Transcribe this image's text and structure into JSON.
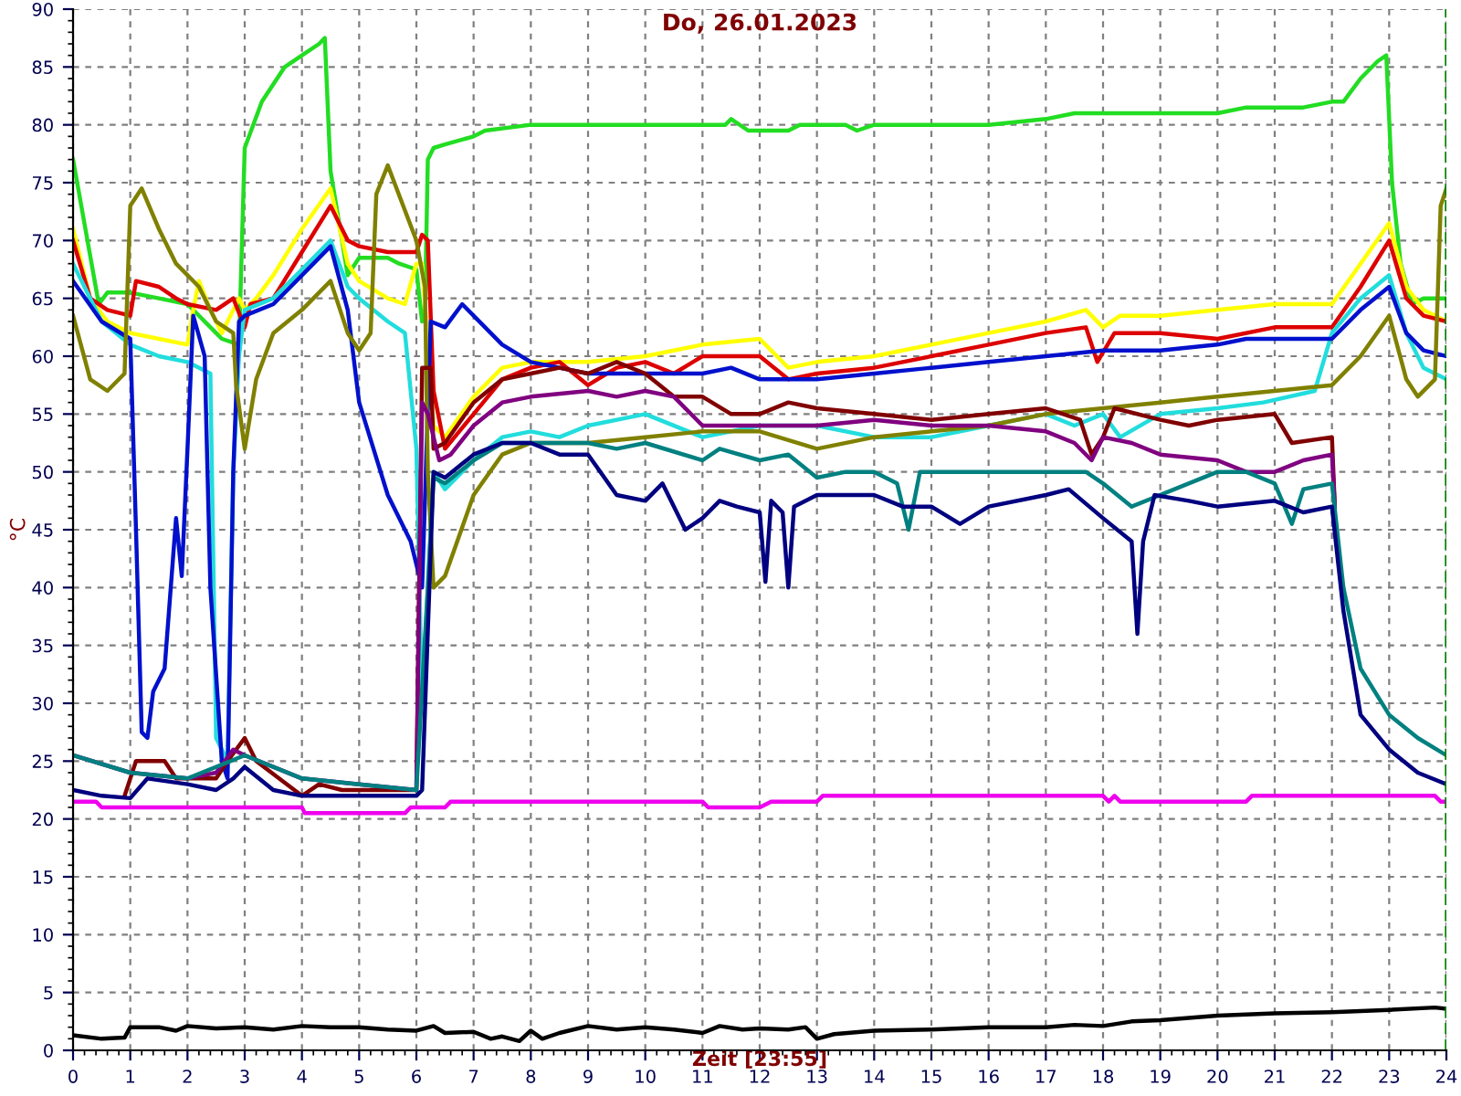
{
  "chart_data": {
    "type": "line",
    "title": "Do, 26.01.2023",
    "xlabel": "Zeit [23:55]",
    "ylabel": "°C",
    "xlim": [
      0,
      24
    ],
    "xticks": [
      0,
      1,
      2,
      3,
      4,
      5,
      6,
      7,
      8,
      9,
      10,
      11,
      12,
      13,
      14,
      15,
      16,
      17,
      18,
      19,
      20,
      21,
      22,
      23,
      24
    ],
    "ylim": [
      0,
      90
    ],
    "yticks": [
      0,
      5,
      10,
      15,
      20,
      25,
      30,
      35,
      40,
      45,
      50,
      55,
      60,
      65,
      70,
      75,
      80,
      85,
      90
    ],
    "grid": true,
    "legend": false,
    "marker": "none",
    "line_style": "solid",
    "ref_lines": [
      {
        "axis": "x",
        "value": 24,
        "color": "#008000",
        "line_style": "dashed"
      }
    ],
    "series": [
      {
        "color": "#22dd22",
        "x": [
          0,
          0.45,
          0.6,
          1.0,
          1.5,
          2.0,
          2.5,
          2.6,
          2.9,
          3.0,
          3.3,
          3.7,
          4.0,
          4.3,
          4.4,
          4.5,
          4.8,
          5.0,
          5.5,
          5.7,
          6.0,
          6.1,
          6.15,
          6.2,
          6.3,
          6.5,
          7.0,
          7.2,
          8,
          10,
          11.4,
          11.5,
          11.8,
          12.5,
          12.7,
          13.5,
          13.7,
          14,
          15,
          16,
          17,
          17.5,
          18,
          19,
          20,
          20.5,
          21.5,
          22.0,
          22.2,
          22.5,
          22.8,
          22.95,
          23.05,
          23.2,
          23.4,
          23.6,
          24
        ],
        "values": [
          77,
          64.5,
          65.5,
          65.5,
          65,
          64.5,
          62,
          61.5,
          61,
          78,
          82,
          85,
          86,
          87,
          87.5,
          76,
          67,
          68.5,
          68.5,
          68,
          67.5,
          63,
          64,
          77,
          78,
          78.3,
          79,
          79.5,
          80,
          80,
          80,
          80.5,
          79.5,
          79.5,
          80,
          80,
          79.5,
          80,
          80,
          80,
          80.5,
          81,
          81,
          81,
          81,
          81.5,
          81.5,
          82,
          82,
          84,
          85.5,
          86,
          75,
          68,
          64.5,
          65,
          65
        ]
      },
      {
        "color": "#ffff00",
        "x": [
          0,
          0.3,
          0.6,
          1.0,
          1.5,
          2.0,
          2.1,
          2.2,
          2.4,
          2.6,
          2.9,
          3.0,
          3.2,
          3.5,
          4.0,
          4.5,
          4.8,
          5.0,
          5.5,
          5.8,
          6.0,
          6.1,
          6.3,
          6.5,
          7.0,
          7.5,
          8.0,
          9.0,
          10,
          11,
          12,
          12.5,
          13,
          14,
          15,
          16,
          17,
          17.7,
          18,
          18.3,
          19,
          20,
          21,
          22,
          22.5,
          23,
          23.3,
          23.6,
          24
        ],
        "values": [
          71,
          65,
          63,
          62,
          61.5,
          61,
          64,
          66.5,
          64,
          62,
          65,
          64,
          65,
          67,
          71,
          74.5,
          68,
          66.5,
          65,
          64.5,
          68,
          68,
          54,
          53,
          56.5,
          59,
          59.5,
          59.5,
          60,
          61,
          61.5,
          59,
          59.5,
          60,
          61,
          62,
          63,
          64,
          62.5,
          63.5,
          63.5,
          64,
          64.5,
          64.5,
          68,
          71.5,
          66,
          64,
          63
        ]
      },
      {
        "color": "#dd0000",
        "x": [
          0,
          0.3,
          0.6,
          1.0,
          1.1,
          1.5,
          1.8,
          2.0,
          2.5,
          2.8,
          3.0,
          3.1,
          3.5,
          4.0,
          4.5,
          4.8,
          5.0,
          5.5,
          6.0,
          6.1,
          6.2,
          6.3,
          6.5,
          7.0,
          7.5,
          8,
          8.5,
          9,
          9.5,
          10,
          10.5,
          11,
          12,
          12.5,
          13,
          14,
          15,
          16,
          17,
          17.7,
          17.9,
          18.2,
          19,
          20,
          21,
          22,
          22.5,
          23,
          23.3,
          23.6,
          24
        ],
        "values": [
          70,
          65,
          64,
          63.5,
          66.5,
          66,
          65,
          64.5,
          64,
          65,
          62.5,
          64.5,
          65,
          69,
          73,
          70,
          69.5,
          69,
          69,
          70.5,
          70,
          57,
          52,
          55,
          58,
          59,
          59.5,
          57.5,
          59,
          59.5,
          58.5,
          60,
          60,
          58,
          58.5,
          59,
          60,
          61,
          62,
          62.5,
          59.5,
          62,
          62,
          61.5,
          62.5,
          62.5,
          66,
          70,
          65,
          63.5,
          63
        ]
      },
      {
        "color": "#22dddd",
        "x": [
          0,
          0.5,
          1.0,
          1.5,
          2.0,
          2.4,
          2.5,
          2.7,
          2.8,
          2.9,
          3.0,
          3.5,
          4.0,
          4.5,
          4.8,
          5.0,
          5.5,
          5.8,
          6.0,
          6.1,
          6.3,
          6.5,
          7.0,
          7.5,
          8,
          8.5,
          9,
          10,
          11,
          12,
          13,
          14,
          15,
          16,
          17,
          17.5,
          18,
          18.3,
          19,
          20,
          20.8,
          21.7,
          22,
          22.5,
          23,
          23.3,
          23.6,
          24
        ],
        "values": [
          68,
          63,
          61,
          60,
          59.5,
          58.5,
          27,
          25,
          50,
          60,
          64,
          65,
          67.5,
          70,
          66,
          65,
          63,
          62,
          52,
          30,
          50,
          48.5,
          51,
          53,
          53.5,
          53,
          54,
          55,
          53,
          54,
          54,
          53,
          53,
          54,
          55,
          54,
          55,
          53,
          55,
          55.5,
          56,
          57,
          62,
          65,
          67,
          62,
          59,
          58
        ]
      },
      {
        "color": "#0010cc",
        "x": [
          0,
          0.5,
          1.0,
          1.1,
          1.2,
          1.3,
          1.4,
          1.6,
          1.8,
          1.9,
          2.0,
          2.1,
          2.3,
          2.4,
          2.6,
          2.7,
          2.8,
          2.9,
          3.0,
          3.5,
          4.0,
          4.5,
          4.8,
          5.0,
          5.5,
          5.8,
          5.9,
          6.1,
          6.25,
          6.5,
          6.8,
          7.5,
          8,
          8.5,
          9,
          10,
          11,
          11.5,
          12,
          13,
          14,
          15,
          16,
          17,
          18,
          19,
          20,
          20.5,
          21,
          22,
          22.5,
          23,
          23.3,
          23.6,
          24
        ],
        "values": [
          66.5,
          63,
          61.5,
          45,
          27.5,
          27,
          31,
          33,
          46,
          41,
          52,
          63.5,
          60,
          40,
          25,
          23.5,
          50,
          63,
          63.5,
          64.5,
          67,
          69.5,
          64,
          56,
          48,
          45,
          44,
          40,
          63,
          62.5,
          64.5,
          61,
          59.5,
          59,
          58.5,
          58.5,
          58.5,
          59,
          58,
          58,
          58.5,
          59,
          59.5,
          60,
          60.5,
          60.5,
          61,
          61.5,
          61.5,
          61.5,
          64,
          66,
          62,
          60.5,
          60
        ]
      },
      {
        "color": "#808000",
        "x": [
          0,
          0.3,
          0.6,
          0.9,
          1.0,
          1.2,
          1.5,
          1.8,
          2.2,
          2.5,
          2.8,
          2.85,
          3.0,
          3.2,
          3.5,
          4.0,
          4.5,
          4.8,
          5.0,
          5.2,
          5.3,
          5.5,
          6.0,
          6.15,
          6.2,
          6.3,
          6.5,
          7.0,
          7.5,
          8,
          9,
          10,
          11,
          12,
          13,
          14,
          15,
          16,
          17,
          18,
          19,
          20,
          21,
          22,
          22.5,
          23,
          23.3,
          23.5,
          23.8,
          23.9,
          24
        ],
        "values": [
          63.5,
          58,
          57,
          58.5,
          73,
          74.5,
          71,
          68,
          66,
          63,
          62,
          57.5,
          52,
          58,
          62,
          64,
          66.5,
          62,
          60.5,
          62,
          74,
          76.5,
          70,
          66,
          50,
          40,
          41,
          48,
          51.5,
          52.5,
          52.5,
          53,
          53.5,
          53.5,
          52,
          53,
          53.5,
          54,
          55,
          55.5,
          56,
          56.5,
          57,
          57.5,
          60,
          63.5,
          58,
          56.5,
          58,
          73,
          74.5
        ]
      },
      {
        "color": "#800000",
        "x": [
          0.9,
          1.1,
          1.6,
          1.8,
          2.5,
          2.7,
          3.0,
          3.2,
          4.0,
          4.3,
          4.7,
          5.0,
          6.0,
          6.1,
          6.25,
          6.3,
          6.5,
          7.0,
          7.5,
          8,
          8.5,
          9,
          9.5,
          10,
          10.5,
          11,
          11.5,
          12,
          12.5,
          13,
          14,
          15,
          16,
          17,
          17.6,
          17.8,
          18.0,
          18.2,
          19,
          19.5,
          20,
          21,
          21.3,
          22,
          22.05
        ],
        "values": [
          22,
          25,
          25,
          23.5,
          23.5,
          25,
          27,
          25,
          22,
          23,
          22.5,
          22.5,
          22.5,
          59,
          59,
          52,
          52.5,
          56,
          58,
          58.5,
          59,
          58.5,
          59.5,
          58.5,
          56.5,
          56.5,
          55,
          55,
          56,
          55.5,
          55,
          54.5,
          55,
          55.5,
          54.5,
          51.5,
          53,
          55.5,
          54.5,
          54,
          54.5,
          55,
          52.5,
          53,
          47
        ]
      },
      {
        "color": "#800080",
        "x": [
          0,
          1.0,
          2.0,
          2.5,
          2.8,
          3.0,
          4.0,
          5.0,
          6.0,
          6.05,
          6.1,
          6.2,
          6.4,
          6.6,
          7.0,
          7.5,
          8,
          9,
          9.5,
          10,
          10.5,
          11,
          12,
          13,
          14,
          15,
          16,
          17,
          17.5,
          17.8,
          18,
          18.5,
          19,
          20,
          20.5,
          21,
          21.5,
          22,
          22.05
        ],
        "values": [
          25.5,
          24,
          23.5,
          24,
          26,
          25.5,
          23.5,
          23,
          22.5,
          40,
          56,
          55,
          51,
          51.5,
          54,
          56,
          56.5,
          57,
          56.5,
          57,
          56.5,
          54,
          54,
          54,
          54.5,
          54,
          54,
          53.5,
          52.5,
          51,
          53,
          52.5,
          51.5,
          51,
          50,
          50,
          51,
          51.5,
          47
        ]
      },
      {
        "color": "#008080",
        "x": [
          0,
          1.0,
          2.0,
          3.0,
          4.0,
          5.0,
          6.0,
          6.2,
          6.3,
          6.5,
          7.0,
          7.5,
          8,
          9,
          9.5,
          10,
          11,
          11.3,
          12,
          12.5,
          13,
          13.5,
          14,
          14.4,
          14.6,
          14.8,
          15,
          16,
          17,
          17.7,
          18,
          18.5,
          19,
          20,
          20.5,
          21,
          21.3,
          21.5,
          22,
          22.2,
          22.5,
          23,
          23.5,
          24
        ],
        "values": [
          25.5,
          24,
          23.5,
          25.5,
          23.5,
          23,
          22.5,
          40,
          49.5,
          49,
          51,
          52.5,
          52.5,
          52.5,
          52,
          52.5,
          51,
          52,
          51,
          51.5,
          49.5,
          50,
          50,
          49,
          45,
          50,
          50,
          50,
          50,
          50,
          49,
          47,
          48,
          50,
          50,
          49,
          45.5,
          48.5,
          49,
          40,
          33,
          29,
          27,
          25.5
        ]
      },
      {
        "color": "#000080",
        "x": [
          0,
          0.5,
          1.0,
          1.3,
          2.0,
          2.5,
          2.8,
          3.0,
          3.5,
          4.0,
          5.0,
          6.0,
          6.1,
          6.3,
          6.5,
          7.0,
          7.5,
          8,
          8.5,
          9,
          9.5,
          10,
          10.3,
          10.7,
          11,
          11.3,
          11.6,
          12,
          12.1,
          12.2,
          12.4,
          12.5,
          12.6,
          13,
          14,
          14.5,
          15,
          15.5,
          16,
          17,
          17.4,
          18,
          18.5,
          18.6,
          18.7,
          18.9,
          19.5,
          20,
          21,
          21.5,
          22,
          22.2,
          22.5,
          23,
          23.5,
          24
        ],
        "values": [
          22.5,
          22,
          21.8,
          23.5,
          23,
          22.5,
          23.5,
          24.5,
          22.5,
          22,
          22,
          22,
          22.5,
          50,
          49.5,
          51.5,
          52.5,
          52.5,
          51.5,
          51.5,
          48,
          47.5,
          49,
          45,
          46,
          47.5,
          47,
          46.5,
          40.5,
          47.5,
          46.5,
          40,
          47,
          48,
          48,
          47,
          47,
          45.5,
          47,
          48,
          48.5,
          46,
          44,
          36,
          44,
          48,
          47.5,
          47,
          47.5,
          46.5,
          47,
          38,
          29,
          26,
          24,
          23
        ]
      },
      {
        "color": "#ee00ee",
        "x": [
          0,
          0.4,
          0.5,
          4.0,
          4.05,
          5.8,
          5.9,
          6.5,
          6.6,
          11,
          11.1,
          12,
          12.2,
          13,
          13.1,
          18.0,
          18.1,
          18.2,
          18.3,
          20.5,
          20.6,
          23.8,
          23.9,
          24
        ],
        "values": [
          21.5,
          21.5,
          21,
          21,
          20.5,
          20.5,
          21,
          21,
          21.5,
          21.5,
          21,
          21,
          21.5,
          21.5,
          22,
          22,
          21.5,
          22,
          21.5,
          21.5,
          22,
          22,
          21.5,
          21.5
        ]
      },
      {
        "color": "#000000",
        "x": [
          0,
          0.5,
          0.9,
          1.0,
          1.5,
          1.8,
          2.0,
          2.5,
          3,
          3.5,
          4,
          4.5,
          5,
          5.5,
          6,
          6.3,
          6.5,
          7,
          7.3,
          7.5,
          7.8,
          8,
          8.2,
          8.5,
          9,
          9.5,
          10,
          10.5,
          11,
          11.3,
          11.7,
          12,
          12.5,
          12.8,
          13.0,
          13.3,
          14,
          15,
          16,
          17,
          17.5,
          18,
          18.5,
          19,
          20,
          20.5,
          21,
          22,
          23,
          23.8,
          24
        ],
        "values": [
          1.3,
          1,
          1.1,
          2,
          2,
          1.7,
          2.1,
          1.9,
          2,
          1.8,
          2.1,
          2,
          2,
          1.8,
          1.7,
          2.1,
          1.5,
          1.6,
          1,
          1.2,
          0.8,
          1.7,
          1,
          1.5,
          2.1,
          1.8,
          2,
          1.8,
          1.5,
          2.1,
          1.8,
          1.9,
          1.8,
          2,
          1,
          1.4,
          1.7,
          1.8,
          2,
          2,
          2.2,
          2.1,
          2.5,
          2.6,
          3,
          3.1,
          3.2,
          3.3,
          3.5,
          3.7,
          3.6
        ]
      }
    ]
  }
}
